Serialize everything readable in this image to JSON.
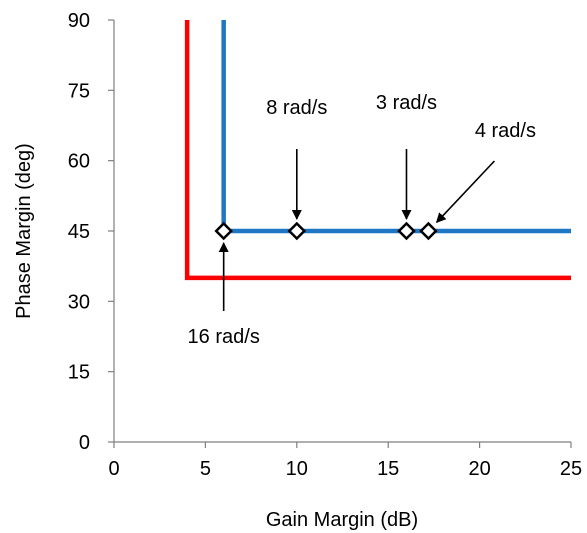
{
  "chart_data": {
    "type": "line",
    "xlabel": "Gain Margin (dB)",
    "ylabel": "Phase Margin  (deg)",
    "xlim": [
      0,
      25
    ],
    "ylim": [
      0,
      90
    ],
    "x_ticks": [
      0,
      5,
      10,
      15,
      20,
      25
    ],
    "y_ticks": [
      0,
      15,
      30,
      45,
      60,
      75,
      90
    ],
    "grid": false,
    "series": [
      {
        "color": "#ff0000",
        "points": [
          [
            4,
            90
          ],
          [
            4,
            35
          ],
          [
            25,
            35
          ]
        ]
      },
      {
        "color": "#1f77c4",
        "points": [
          [
            6,
            90
          ],
          [
            6,
            45
          ],
          [
            25,
            45
          ]
        ]
      }
    ],
    "markers": [
      {
        "x": 6,
        "y": 45
      },
      {
        "x": 10,
        "y": 45
      },
      {
        "x": 16,
        "y": 45
      },
      {
        "x": 17.2,
        "y": 45
      }
    ],
    "annotations": [
      {
        "text": "16 rad/s",
        "x": 6,
        "y": 45
      },
      {
        "text": "8 rad/s",
        "x": 10,
        "y": 45
      },
      {
        "text": "3 rad/s",
        "x": 16,
        "y": 45
      },
      {
        "text": "4 rad/s",
        "x": 17.2,
        "y": 45
      }
    ]
  }
}
